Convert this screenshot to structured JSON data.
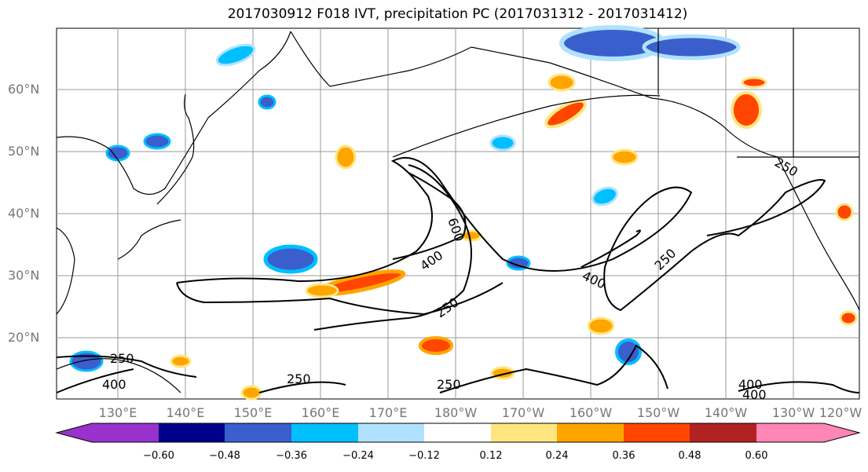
{
  "title": "2017030912 F018 IVT, precipitation PC (2017031312 - 2017031412)",
  "lat_labels": [
    "60°N",
    "50°N",
    "40°N",
    "30°N",
    "20°N"
  ],
  "lon_labels": [
    "130°E",
    "140°E",
    "150°E",
    "160°E",
    "170°E",
    "180°W",
    "170°W",
    "160°W",
    "150°W",
    "140°W",
    "130°W",
    "120°W"
  ],
  "contour_labels": [
    "250",
    "400",
    "600",
    "400",
    "250",
    "400",
    "250",
    "250",
    "250",
    "400",
    "250",
    "400"
  ],
  "colorbar": {
    "ticks": [
      "−0.60",
      "−0.48",
      "−0.36",
      "−0.24",
      "−0.12",
      "0.12",
      "0.24",
      "0.36",
      "0.48",
      "0.60"
    ],
    "colors": [
      "#9932cc",
      "#00008b",
      "#3a5fcd",
      "#00bfff",
      "#b0e2ff",
      "#ffffff",
      "#ffe680",
      "#ffa500",
      "#ff4500",
      "#b22222",
      "#ff86b5"
    ]
  },
  "colors": {
    "land_line": "#000000",
    "grid": "#999999",
    "label": "#777777"
  }
}
